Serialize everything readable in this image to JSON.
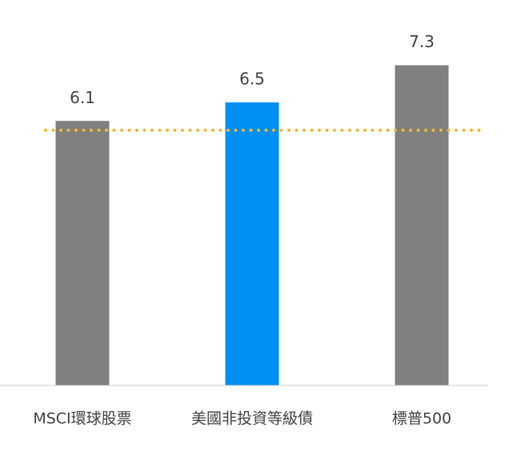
{
  "chart_data": {
    "type": "bar",
    "categories": [
      "MSCI環球股票",
      "美國非投資等級債",
      "標普500"
    ],
    "values": [
      6.1,
      6.5,
      7.3
    ],
    "colors": [
      "#808080",
      "#0090f5",
      "#808080"
    ],
    "ylim": [
      0.4,
      8.0
    ],
    "reference_line": {
      "value": 5.9,
      "color": "#f5b731"
    }
  }
}
